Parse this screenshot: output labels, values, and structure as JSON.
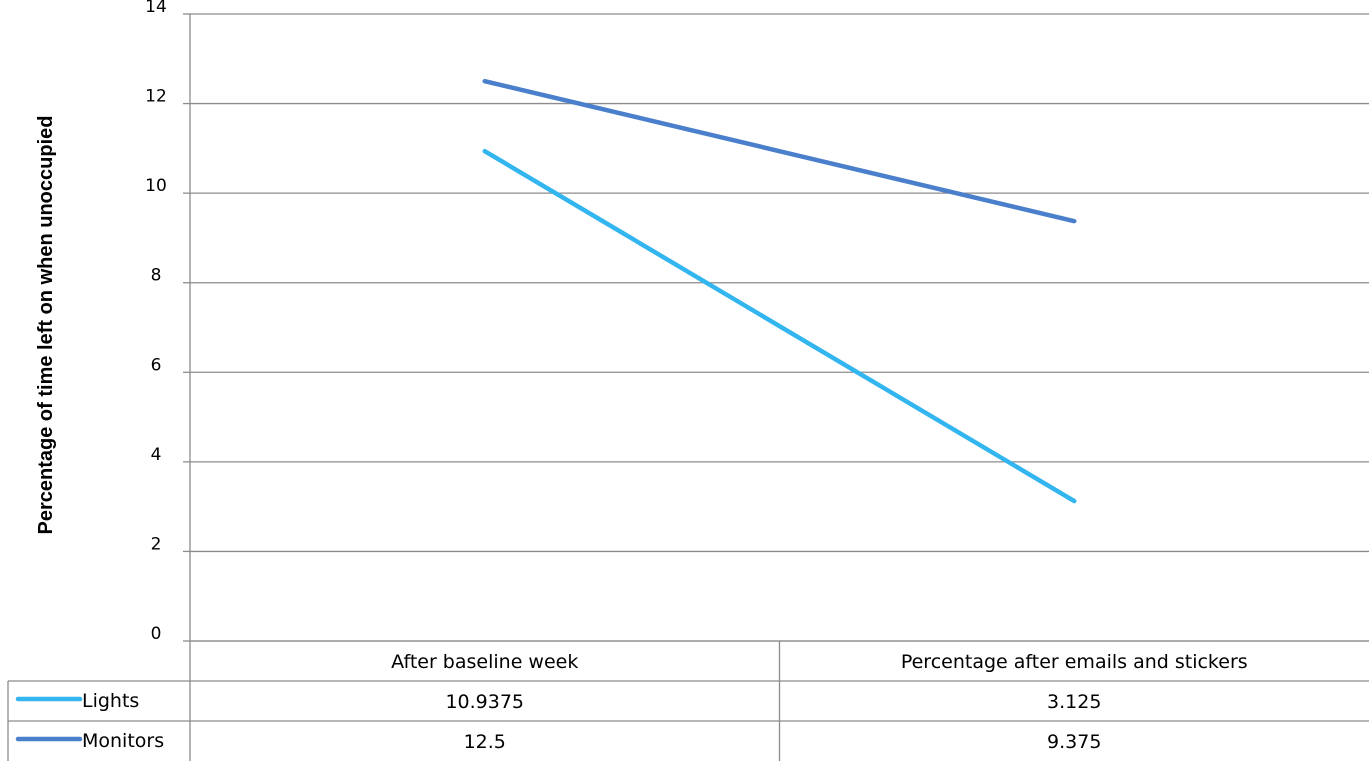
{
  "chart_data": {
    "type": "line",
    "title": "",
    "xlabel": "",
    "ylabel": "Percentage of time left on when unoccupied",
    "ylim": [
      0,
      14
    ],
    "yticks": [
      0,
      2,
      4,
      6,
      8,
      10,
      12,
      14
    ],
    "ytick_labels": [
      "0",
      "2",
      "4",
      "6",
      "8",
      "10",
      "12",
      "14"
    ],
    "grid": true,
    "legend": "data-table",
    "categories": [
      "After baseline week",
      "Percentage after emails and stickers"
    ],
    "series": [
      {
        "name": "Lights",
        "values": [
          10.9375,
          3.125
        ],
        "value_labels": [
          "10.9375",
          "3.125"
        ],
        "color": "#33b5ef"
      },
      {
        "name": "Monitors",
        "values": [
          12.5,
          9.375
        ],
        "value_labels": [
          "12.5",
          "9.375"
        ],
        "color": "#4a7fcc"
      }
    ]
  },
  "colors": {
    "grid": "#8c8c8c",
    "table_border": "#8c8c8c"
  }
}
